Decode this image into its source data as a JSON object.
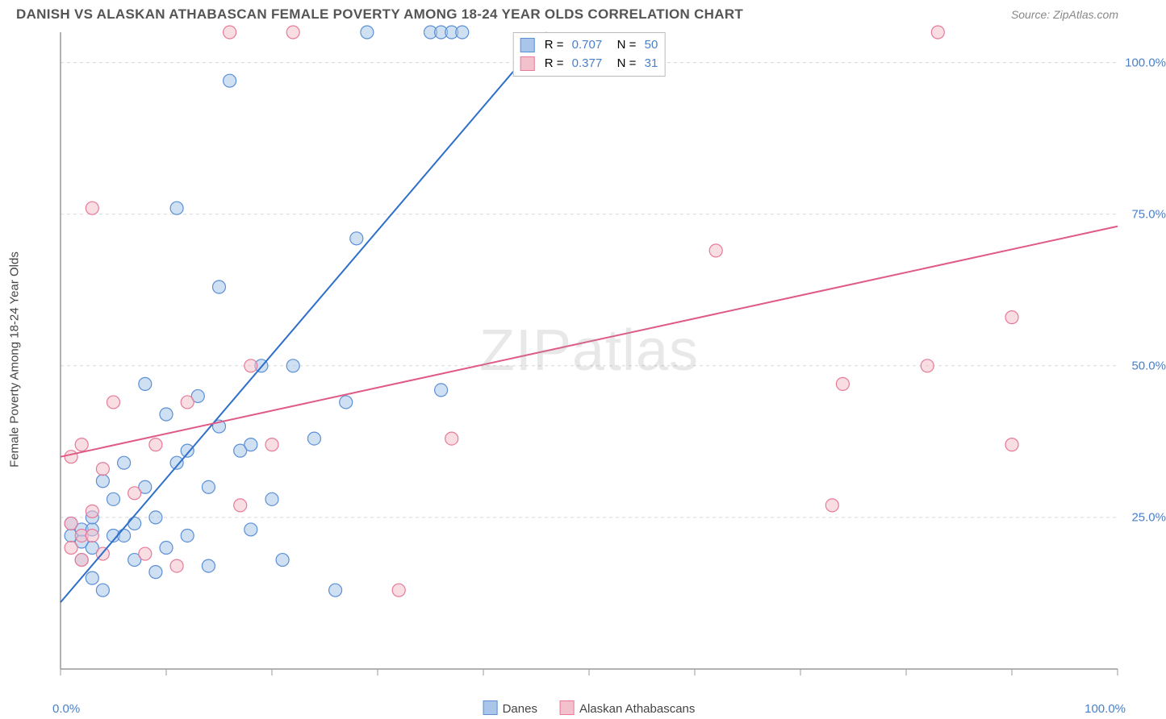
{
  "title": "DANISH VS ALASKAN ATHABASCAN FEMALE POVERTY AMONG 18-24 YEAR OLDS CORRELATION CHART",
  "source": "Source: ZipAtlas.com",
  "ylabel": "Female Poverty Among 18-24 Year Olds",
  "watermark": "ZIPatlas",
  "xaxis": {
    "min": 0,
    "max": 100,
    "tick_min_label": "0.0%",
    "tick_max_label": "100.0%",
    "ticks": [
      0,
      10,
      20,
      30,
      40,
      50,
      60,
      70,
      80,
      90,
      100
    ]
  },
  "yaxis": {
    "min": 0,
    "max": 105,
    "tick_labels": [
      {
        "v": 25,
        "t": "25.0%"
      },
      {
        "v": 50,
        "t": "50.0%"
      },
      {
        "v": 75,
        "t": "75.0%"
      },
      {
        "v": 100,
        "t": "100.0%"
      }
    ]
  },
  "grid_color": "#d8d8d8",
  "axis_color": "#999",
  "background_color": "#ffffff",
  "marker_radius": 8,
  "marker_opacity": 0.55,
  "line_width": 2,
  "series": [
    {
      "name": "Danes",
      "color_fill": "#a9c6ea",
      "color_stroke": "#5b8fd6",
      "line_color": "#2e6fc9",
      "R": "0.707",
      "N": "50",
      "regression": {
        "x1": 0,
        "y1": 11,
        "x2": 46,
        "y2": 105
      },
      "points": [
        [
          1,
          22
        ],
        [
          1,
          24
        ],
        [
          2,
          18
        ],
        [
          2,
          21
        ],
        [
          2,
          23
        ],
        [
          3,
          15
        ],
        [
          3,
          20
        ],
        [
          3,
          23
        ],
        [
          3,
          25
        ],
        [
          4,
          13
        ],
        [
          4,
          31
        ],
        [
          5,
          22
        ],
        [
          5,
          28
        ],
        [
          6,
          22
        ],
        [
          6,
          34
        ],
        [
          7,
          18
        ],
        [
          7,
          24
        ],
        [
          8,
          30
        ],
        [
          8,
          47
        ],
        [
          9,
          16
        ],
        [
          9,
          25
        ],
        [
          10,
          20
        ],
        [
          10,
          42
        ],
        [
          11,
          34
        ],
        [
          11,
          76
        ],
        [
          12,
          22
        ],
        [
          12,
          36
        ],
        [
          13,
          45
        ],
        [
          14,
          17
        ],
        [
          14,
          30
        ],
        [
          15,
          40
        ],
        [
          15,
          63
        ],
        [
          16,
          97
        ],
        [
          17,
          36
        ],
        [
          18,
          23
        ],
        [
          18,
          37
        ],
        [
          19,
          50
        ],
        [
          20,
          28
        ],
        [
          21,
          18
        ],
        [
          22,
          50
        ],
        [
          24,
          38
        ],
        [
          26,
          13
        ],
        [
          27,
          44
        ],
        [
          28,
          71
        ],
        [
          29,
          105
        ],
        [
          35,
          105
        ],
        [
          36,
          105
        ],
        [
          37,
          105
        ],
        [
          38,
          105
        ],
        [
          36,
          46
        ]
      ]
    },
    {
      "name": "Alaskan Athabascans",
      "color_fill": "#f3c1cc",
      "color_stroke": "#e77a99",
      "line_color": "#e05a86",
      "R": "0.377",
      "N": "31",
      "regression": {
        "x1": 0,
        "y1": 35,
        "x2": 100,
        "y2": 73
      },
      "points": [
        [
          1,
          24
        ],
        [
          1,
          20
        ],
        [
          1,
          35
        ],
        [
          2,
          18
        ],
        [
          2,
          22
        ],
        [
          2,
          37
        ],
        [
          3,
          22
        ],
        [
          3,
          26
        ],
        [
          3,
          76
        ],
        [
          4,
          19
        ],
        [
          4,
          33
        ],
        [
          5,
          44
        ],
        [
          7,
          29
        ],
        [
          8,
          19
        ],
        [
          9,
          37
        ],
        [
          11,
          17
        ],
        [
          12,
          44
        ],
        [
          16,
          105
        ],
        [
          17,
          27
        ],
        [
          18,
          50
        ],
        [
          20,
          37
        ],
        [
          22,
          105
        ],
        [
          32,
          13
        ],
        [
          37,
          38
        ],
        [
          62,
          69
        ],
        [
          73,
          27
        ],
        [
          74,
          47
        ],
        [
          82,
          50
        ],
        [
          83,
          105
        ],
        [
          90,
          37
        ],
        [
          90,
          58
        ]
      ]
    }
  ],
  "legend": {
    "series1": "Danes",
    "series2": "Alaskan Athabascans"
  }
}
